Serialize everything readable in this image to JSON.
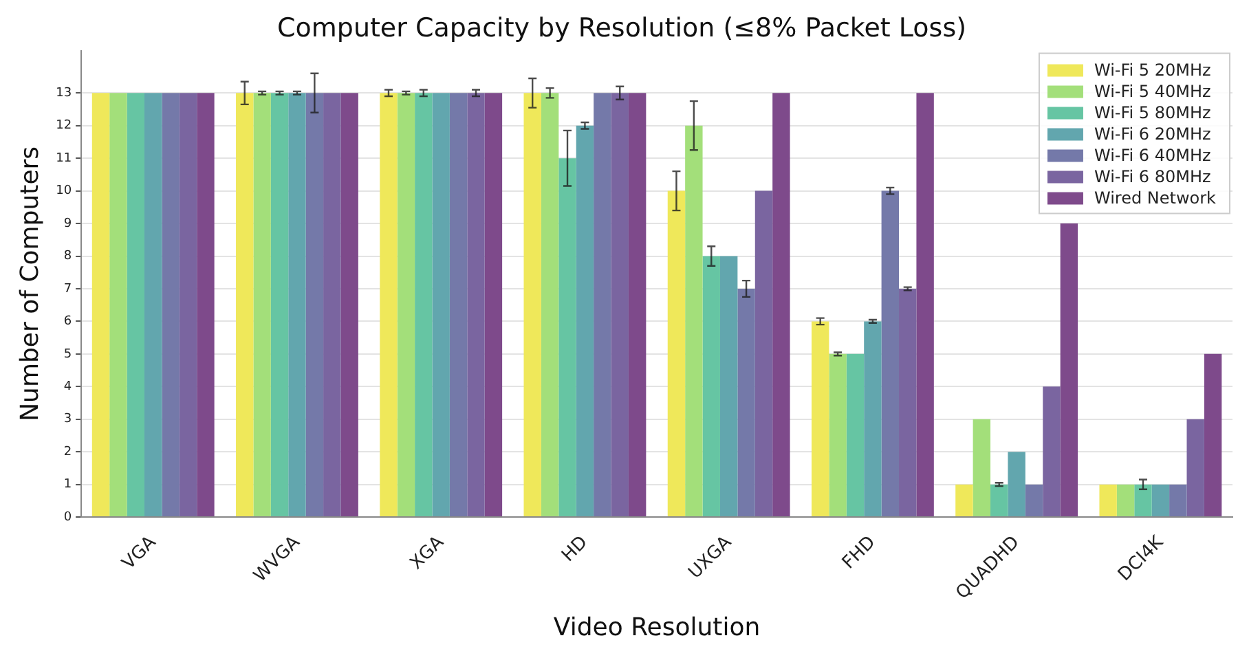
{
  "chart_data": {
    "type": "bar",
    "title": "Computer Capacity by Resolution (≤8% Packet Loss)",
    "xlabel": "Video Resolution",
    "ylabel": "Number of Computers",
    "categories": [
      "VGA",
      "WVGA",
      "XGA",
      "HD",
      "UXGA",
      "FHD",
      "QUADHD",
      "DCI4K"
    ],
    "series": [
      {
        "name": "Wi-Fi 5 20MHz",
        "color": "#efe85a",
        "values": [
          13,
          13,
          13,
          13,
          10,
          6,
          1,
          1
        ],
        "errors": [
          null,
          0.35,
          0.1,
          0.45,
          0.6,
          0.1,
          null,
          null
        ]
      },
      {
        "name": "Wi-Fi 5 40MHz",
        "color": "#a3df7a",
        "values": [
          13,
          13,
          13,
          13,
          12,
          5,
          3,
          1
        ],
        "errors": [
          null,
          0.05,
          0.05,
          0.15,
          0.75,
          0.05,
          null,
          null
        ]
      },
      {
        "name": "Wi-Fi 5 80MHz",
        "color": "#66c5a3",
        "values": [
          13,
          13,
          13,
          11,
          8,
          5,
          1,
          1
        ],
        "errors": [
          null,
          0.05,
          0.1,
          0.85,
          0.3,
          null,
          0.05,
          0.15
        ]
      },
      {
        "name": "Wi-Fi 6 20MHz",
        "color": "#62a6ae",
        "values": [
          13,
          13,
          13,
          12,
          8,
          6,
          2,
          1
        ],
        "errors": [
          null,
          0.05,
          null,
          0.1,
          null,
          0.05,
          null,
          null
        ]
      },
      {
        "name": "Wi-Fi 6 40MHz",
        "color": "#7479a9",
        "values": [
          13,
          13,
          13,
          13,
          7,
          10,
          1,
          1
        ],
        "errors": [
          null,
          0.6,
          null,
          null,
          0.25,
          0.1,
          null,
          null
        ]
      },
      {
        "name": "Wi-Fi 6 80MHz",
        "color": "#7a65a0",
        "values": [
          13,
          13,
          13,
          13,
          10,
          7,
          4,
          3
        ],
        "errors": [
          null,
          null,
          0.1,
          0.2,
          null,
          0.05,
          null,
          null
        ]
      },
      {
        "name": "Wired Network",
        "color": "#7e4a8b",
        "values": [
          13,
          13,
          13,
          13,
          13,
          13,
          9,
          5
        ]
      }
    ],
    "ylim": [
      0,
      14.3
    ],
    "yticks": [
      0,
      1,
      2,
      3,
      4,
      5,
      6,
      7,
      8,
      9,
      10,
      11,
      12,
      13
    ],
    "grid": "y",
    "legend": "top right"
  }
}
